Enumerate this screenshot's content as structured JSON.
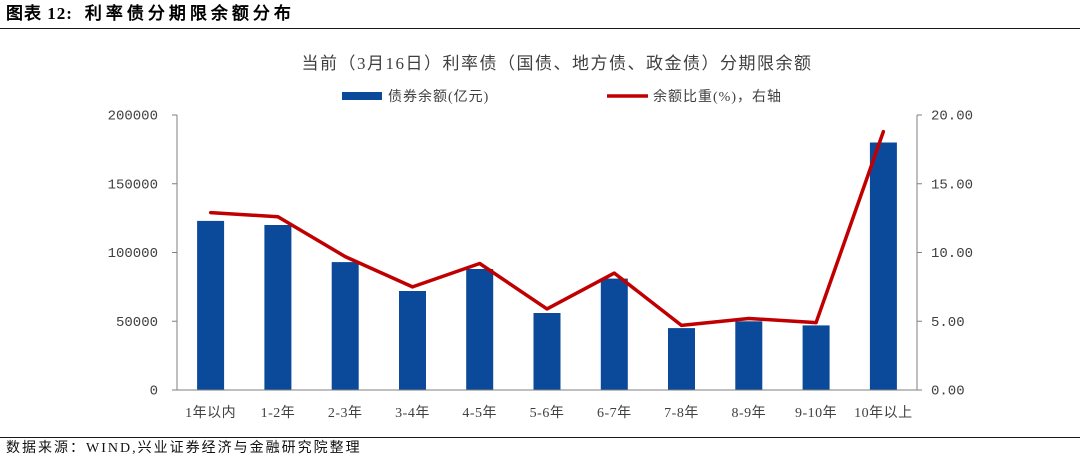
{
  "figure": {
    "label": "图表 12:",
    "title": "利率债分期限余额分布"
  },
  "chart_data": {
    "type": "bar",
    "title": "当前（3月16日）利率债（国债、地方债、政金债）分期限余额",
    "categories": [
      "1年以内",
      "1-2年",
      "2-3年",
      "3-4年",
      "4-5年",
      "5-6年",
      "6-7年",
      "7-8年",
      "8-9年",
      "9-10年",
      "10年以上"
    ],
    "series": [
      {
        "name": "债券余额(亿元)",
        "type": "bar",
        "axis": "left",
        "color": "#0B4A9A",
        "values": [
          123000,
          120000,
          93000,
          72000,
          88000,
          56000,
          81000,
          45000,
          50000,
          47000,
          180000
        ]
      },
      {
        "name": "余额比重(%)，右轴",
        "type": "line",
        "axis": "right",
        "color": "#C00000",
        "values": [
          12.9,
          12.6,
          9.7,
          7.5,
          9.2,
          5.9,
          8.5,
          4.7,
          5.2,
          4.9,
          18.8
        ]
      }
    ],
    "ylim": [
      0,
      200000
    ],
    "y2lim": [
      0,
      20
    ],
    "yticks": [
      "0",
      "50000",
      "100000",
      "150000",
      "200000"
    ],
    "y2ticks": [
      "0.00",
      "5.00",
      "10.00",
      "15.00",
      "20.00"
    ],
    "legend": "top",
    "grid": false
  },
  "source": "数据来源：WIND,兴业证券经济与金融研究院整理"
}
